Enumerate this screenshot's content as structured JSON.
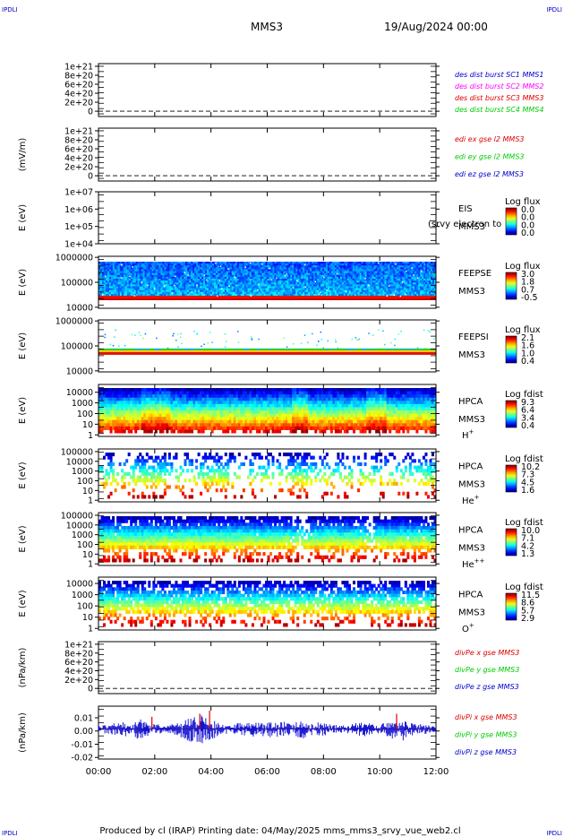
{
  "corner_tags": [
    "IPDLI",
    "IPDLI",
    "IPDLI",
    "IPDLI"
  ],
  "header": {
    "spacecraft": "MMS3",
    "datetime": "19/Aug/2024 00:00"
  },
  "footer": {
    "text": "Produced by cl (IRAP)   Printing date: 04/May/2025   mms_mms3_srvy_vue_web2.cl"
  },
  "x_axis": {
    "ticks": [
      "00:00",
      "02:00",
      "04:00",
      "06:00",
      "08:00",
      "10:00",
      "12:00"
    ],
    "range_hours": [
      0,
      12
    ]
  },
  "colors": {
    "blue": "#0000cc",
    "magenta": "#ff00ff",
    "red": "#dd0000",
    "green": "#00cc00"
  },
  "chart_data": [
    {
      "type": "line",
      "panel": "dist-burst",
      "ylabel": "",
      "yticks": [
        "1e+21",
        "8e+20",
        "6e+20",
        "4e+20",
        "2e+20",
        "0"
      ],
      "legend": [
        "des dist burst SC1 MMS1",
        "des dist burst SC2 MMS2",
        "des dist burst SC3 MMS3",
        "des dist burst SC4 MMS4"
      ],
      "legend_colors": [
        "#0000cc",
        "#ff00ff",
        "#dd0000",
        "#00cc00"
      ],
      "series": []
    },
    {
      "type": "line",
      "panel": "edi-e-field",
      "ylabel": "(mV/m)",
      "yticks": [
        "1e+21",
        "8e+20",
        "6e+20",
        "4e+20",
        "2e+20",
        "0"
      ],
      "legend": [
        "edi ex gse l2 MMS3",
        "edi ey gse l2 MMS3",
        "edi ez gse l2 MMS3"
      ],
      "legend_colors": [
        "#dd0000",
        "#00cc00",
        "#0000cc"
      ],
      "series": []
    },
    {
      "type": "heatmap",
      "panel": "eis",
      "ylabel": "E (eV)",
      "yticks": [
        "1e+07",
        "1e+06",
        "1e+05",
        "1e+04"
      ],
      "labels": [
        "EIS",
        "MMS3"
      ],
      "overlay": "(srvy electron to",
      "cbar_title": "Log flux",
      "cbar_ticks": [
        "0.0",
        "0.0",
        "0.0",
        "0.0"
      ]
    },
    {
      "type": "heatmap",
      "panel": "feeps-e",
      "ylabel": "E (eV)",
      "yticks": [
        "1000000",
        "100000",
        "10000"
      ],
      "labels": [
        "FEEPSE",
        "MMS3"
      ],
      "cbar_title": "Log flux",
      "cbar_ticks": [
        "3.0",
        "1.8",
        "0.7",
        "-0.5"
      ]
    },
    {
      "type": "heatmap",
      "panel": "feeps-i",
      "ylabel": "E (eV)",
      "yticks": [
        "1000000",
        "100000",
        "10000"
      ],
      "labels": [
        "FEEPSI",
        "MMS3"
      ],
      "cbar_title": "Log flux",
      "cbar_ticks": [
        "2.1",
        "1.6",
        "1.0",
        "0.4"
      ]
    },
    {
      "type": "heatmap",
      "panel": "hpca-h",
      "ylabel": "E (eV)",
      "yticks": [
        "10000",
        "1000",
        "100",
        "10",
        "1"
      ],
      "labels": [
        "HPCA",
        "MMS3"
      ],
      "species": "H",
      "species_sup": "+",
      "cbar_title": "Log fdist",
      "cbar_ticks": [
        "9.3",
        "6.4",
        "3.4",
        "0.4"
      ]
    },
    {
      "type": "heatmap",
      "panel": "hpca-he",
      "ylabel": "E (eV)",
      "yticks": [
        "100000",
        "10000",
        "1000",
        "100",
        "10",
        "1"
      ],
      "labels": [
        "HPCA",
        "MMS3"
      ],
      "species": "He",
      "species_sup": "+",
      "cbar_title": "Log fdist",
      "cbar_ticks": [
        "10.2",
        "7.3",
        "4.5",
        "1.6"
      ]
    },
    {
      "type": "heatmap",
      "panel": "hpca-hepp",
      "ylabel": "E (eV)",
      "yticks": [
        "100000",
        "10000",
        "1000",
        "100",
        "10",
        "1"
      ],
      "labels": [
        "HPCA",
        "MMS3"
      ],
      "species": "He",
      "species_sup": "++",
      "cbar_title": "Log fdist",
      "cbar_ticks": [
        "10.0",
        "7.1",
        "4.2",
        "1.3"
      ]
    },
    {
      "type": "heatmap",
      "panel": "hpca-o",
      "ylabel": "E (eV)",
      "yticks": [
        "10000",
        "1000",
        "100",
        "10",
        "1"
      ],
      "labels": [
        "HPCA",
        "MMS3"
      ],
      "species": "O",
      "species_sup": "+",
      "cbar_title": "Log fdist",
      "cbar_ticks": [
        "11.5",
        "8.6",
        "5.7",
        "2.9"
      ]
    },
    {
      "type": "line",
      "panel": "divpe",
      "ylabel": "(nPa/km)",
      "yticks": [
        "1e+21",
        "8e+20",
        "6e+20",
        "4e+20",
        "2e+20",
        "0"
      ],
      "legend": [
        "divPe x gse MMS3",
        "divPe y gse MMS3",
        "divPe z gse MMS3"
      ],
      "legend_colors": [
        "#dd0000",
        "#00cc00",
        "#0000cc"
      ],
      "series": []
    },
    {
      "type": "line",
      "panel": "divpi",
      "ylabel": "(nPa/km)",
      "yticks": [
        "0.01",
        "0.00",
        "-0.01",
        "-0.02"
      ],
      "ylim": [
        -0.02,
        0.015
      ],
      "legend": [
        "divPi x gse MMS3",
        "divPi y gse MMS3",
        "divPi z gse MMS3"
      ],
      "legend_colors": [
        "#dd0000",
        "#00cc00",
        "#0000cc"
      ],
      "series": [
        {
          "name": "divPi z gse MMS3",
          "x": [
            0,
            1,
            1.5,
            2,
            3,
            3.6,
            4,
            5,
            6.8,
            7,
            8,
            9.5,
            10.7,
            11,
            12
          ],
          "values": [
            0.0,
            0.003,
            -0.006,
            0.002,
            -0.003,
            -0.008,
            -0.004,
            0.002,
            0.003,
            -0.004,
            -0.002,
            0.003,
            -0.007,
            -0.002,
            0.0
          ]
        },
        {
          "name": "divPi x gse MMS3",
          "x": [
            1.9,
            3.6,
            3.95,
            10.6
          ],
          "values": [
            0.008,
            0.01,
            0.012,
            0.01
          ]
        }
      ]
    }
  ]
}
